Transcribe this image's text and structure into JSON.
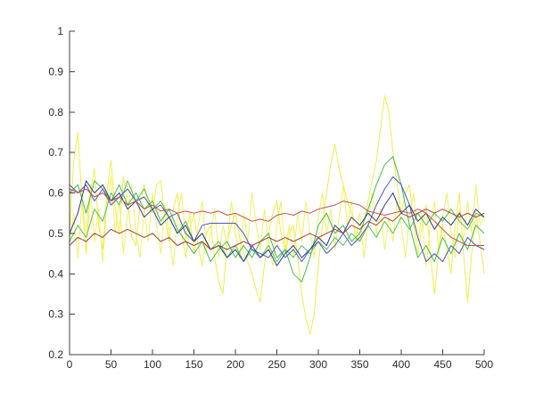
{
  "figure": {
    "background": "#ffffff",
    "axis_color": "#404040",
    "tick_label_color": "#2b2b2b"
  },
  "chart_data": {
    "type": "line",
    "title": "",
    "xlabel": "",
    "ylabel": "",
    "xlim": [
      0,
      500
    ],
    "ylim": [
      0.2,
      1.0
    ],
    "grid": false,
    "legend": "none",
    "box": "left-bottom-spines-only",
    "tick_direction": "in",
    "xticks": [
      0,
      50,
      100,
      150,
      200,
      250,
      300,
      350,
      400,
      450,
      500
    ],
    "xtick_labels": [
      "0",
      "50",
      "100",
      "150",
      "200",
      "250",
      "300",
      "350",
      "400",
      "450",
      "500"
    ],
    "yticks": [
      0.2,
      0.3,
      0.4,
      0.5,
      0.6,
      0.7,
      0.8,
      0.9,
      1.0
    ],
    "ytick_labels": [
      "0.2",
      "0.3",
      "0.4",
      "0.5",
      "0.6",
      "0.7",
      "0.8",
      "0.9",
      "1"
    ],
    "series": [
      {
        "name": "yellow-1",
        "color": "#f2ee48",
        "x_step": 5,
        "values": [
          0.5,
          0.68,
          0.75,
          0.58,
          0.45,
          0.6,
          0.66,
          0.52,
          0.46,
          0.6,
          0.68,
          0.56,
          0.5,
          0.64,
          0.58,
          0.49,
          0.47,
          0.57,
          0.62,
          0.57,
          0.55,
          0.62,
          0.63,
          0.54,
          0.48,
          0.56,
          0.6,
          0.5,
          0.44,
          0.51,
          0.55,
          0.47,
          0.42,
          0.5,
          0.52,
          0.44,
          0.38,
          0.35,
          0.48,
          0.52,
          0.55,
          0.49,
          0.45,
          0.43,
          0.4,
          0.36,
          0.33,
          0.42,
          0.5,
          0.55,
          0.58,
          0.5,
          0.45,
          0.5,
          0.52,
          0.44,
          0.35,
          0.29,
          0.25,
          0.3,
          0.42,
          0.52,
          0.6,
          0.67,
          0.72,
          0.66,
          0.62,
          0.58,
          0.55,
          0.5,
          0.48,
          0.53,
          0.58,
          0.63,
          0.68,
          0.76,
          0.84,
          0.8,
          0.7,
          0.62,
          0.55,
          0.6,
          0.62,
          0.52,
          0.45,
          0.52,
          0.57,
          0.45,
          0.35,
          0.45,
          0.52,
          0.46,
          0.4,
          0.52,
          0.6,
          0.45,
          0.33,
          0.45,
          0.55,
          0.48,
          0.4
        ]
      },
      {
        "name": "yellow-2",
        "color": "#f4f162",
        "x_step": 5,
        "values": [
          0.48,
          0.55,
          0.44,
          0.58,
          0.5,
          0.62,
          0.48,
          0.56,
          0.43,
          0.57,
          0.64,
          0.5,
          0.58,
          0.45,
          0.55,
          0.62,
          0.5,
          0.44,
          0.56,
          0.48,
          0.6,
          0.52,
          0.45,
          0.57,
          0.5,
          0.42,
          0.54,
          0.6,
          0.48,
          0.55,
          0.45,
          0.52,
          0.58,
          0.46,
          0.5,
          0.56,
          0.44,
          0.52,
          0.47,
          0.58,
          0.5,
          0.44,
          0.55,
          0.48,
          0.6,
          0.52,
          0.46,
          0.56,
          0.48,
          0.42,
          0.52,
          0.58,
          0.46,
          0.52,
          0.44,
          0.55,
          0.48,
          0.58,
          0.5,
          0.44,
          0.54,
          0.6,
          0.5,
          0.56,
          0.46,
          0.54,
          0.62,
          0.52,
          0.58,
          0.48,
          0.55,
          0.44,
          0.52,
          0.6,
          0.5,
          0.56,
          0.46,
          0.54,
          0.48,
          0.58,
          0.52,
          0.44,
          0.54,
          0.6,
          0.48,
          0.55,
          0.42,
          0.52,
          0.58,
          0.46,
          0.54,
          0.6,
          0.5,
          0.44,
          0.56,
          0.48,
          0.58,
          0.5,
          0.62,
          0.52,
          0.55
        ]
      },
      {
        "name": "green-1",
        "color": "#41bf47",
        "x_step": 10,
        "values": [
          0.6,
          0.62,
          0.55,
          0.63,
          0.61,
          0.58,
          0.62,
          0.57,
          0.6,
          0.56,
          0.58,
          0.53,
          0.56,
          0.51,
          0.48,
          0.45,
          0.48,
          0.43,
          0.46,
          0.48,
          0.44,
          0.47,
          0.44,
          0.48,
          0.5,
          0.44,
          0.46,
          0.4,
          0.38,
          0.44,
          0.52,
          0.55,
          0.5,
          0.52,
          0.48,
          0.5,
          0.56,
          0.62,
          0.67,
          0.69,
          0.62,
          0.52,
          0.44,
          0.47,
          0.43,
          0.49,
          0.45,
          0.5,
          0.46,
          0.52,
          0.5
        ]
      },
      {
        "name": "green-2",
        "color": "#54c44e",
        "x_step": 10,
        "values": [
          0.48,
          0.52,
          0.49,
          0.56,
          0.53,
          0.6,
          0.57,
          0.63,
          0.58,
          0.61,
          0.56,
          0.58,
          0.54,
          0.5,
          0.53,
          0.48,
          0.5,
          0.46,
          0.48,
          0.44,
          0.47,
          0.43,
          0.46,
          0.44,
          0.47,
          0.43,
          0.46,
          0.44,
          0.47,
          0.45,
          0.48,
          0.46,
          0.49,
          0.47,
          0.5,
          0.48,
          0.52,
          0.49,
          0.53,
          0.5,
          0.54,
          0.51,
          0.55,
          0.52,
          0.55,
          0.53,
          0.56,
          0.53,
          0.51,
          0.55,
          0.54
        ]
      },
      {
        "name": "blue-1",
        "color": "#4d55c6",
        "x_step": 10,
        "values": [
          0.62,
          0.6,
          0.62,
          0.58,
          0.61,
          0.57,
          0.59,
          0.61,
          0.58,
          0.59,
          0.56,
          0.57,
          0.54,
          0.55,
          0.5,
          0.48,
          0.52,
          0.525,
          0.525,
          0.525,
          0.525,
          0.5,
          0.46,
          0.45,
          0.44,
          0.47,
          0.44,
          0.46,
          0.43,
          0.46,
          0.48,
          0.45,
          0.47,
          0.5,
          0.47,
          0.49,
          0.52,
          0.57,
          0.61,
          0.64,
          0.62,
          0.57,
          0.49,
          0.43,
          0.45,
          0.43,
          0.47,
          0.45,
          0.49,
          0.47,
          0.46
        ]
      },
      {
        "name": "blue-2",
        "color": "#2f3897",
        "x_step": 10,
        "values": [
          0.5,
          0.55,
          0.63,
          0.6,
          0.62,
          0.58,
          0.6,
          0.56,
          0.58,
          0.54,
          0.56,
          0.52,
          0.54,
          0.5,
          0.52,
          0.48,
          0.5,
          0.46,
          0.47,
          0.44,
          0.46,
          0.43,
          0.47,
          0.44,
          0.46,
          0.42,
          0.45,
          0.47,
          0.44,
          0.46,
          0.49,
          0.47,
          0.52,
          0.5,
          0.54,
          0.52,
          0.55,
          0.53,
          0.57,
          0.6,
          0.55,
          0.57,
          0.53,
          0.55,
          0.51,
          0.54,
          0.52,
          0.55,
          0.52,
          0.56,
          0.54
        ]
      },
      {
        "name": "red-1",
        "color": "#c4504e",
        "x_step": 10,
        "values": [
          0.61,
          0.6,
          0.61,
          0.59,
          0.6,
          0.58,
          0.59,
          0.57,
          0.58,
          0.56,
          0.57,
          0.555,
          0.56,
          0.55,
          0.555,
          0.55,
          0.555,
          0.55,
          0.555,
          0.545,
          0.55,
          0.54,
          0.53,
          0.535,
          0.53,
          0.545,
          0.55,
          0.545,
          0.555,
          0.55,
          0.56,
          0.565,
          0.57,
          0.58,
          0.575,
          0.57,
          0.555,
          0.55,
          0.545,
          0.55,
          0.555,
          0.55,
          0.56,
          0.55,
          0.53,
          0.51,
          0.49,
          0.48,
          0.47,
          0.47,
          0.47
        ]
      },
      {
        "name": "red-2",
        "color": "#a4413e",
        "x_step": 10,
        "values": [
          0.47,
          0.49,
          0.48,
          0.5,
          0.49,
          0.51,
          0.5,
          0.51,
          0.5,
          0.49,
          0.5,
          0.48,
          0.49,
          0.47,
          0.48,
          0.47,
          0.48,
          0.46,
          0.47,
          0.46,
          0.47,
          0.48,
          0.47,
          0.48,
          0.49,
          0.48,
          0.49,
          0.48,
          0.49,
          0.5,
          0.49,
          0.5,
          0.51,
          0.5,
          0.52,
          0.51,
          0.53,
          0.52,
          0.54,
          0.53,
          0.55,
          0.54,
          0.55,
          0.56,
          0.55,
          0.56,
          0.55,
          0.54,
          0.55,
          0.54,
          0.55
        ]
      }
    ]
  }
}
